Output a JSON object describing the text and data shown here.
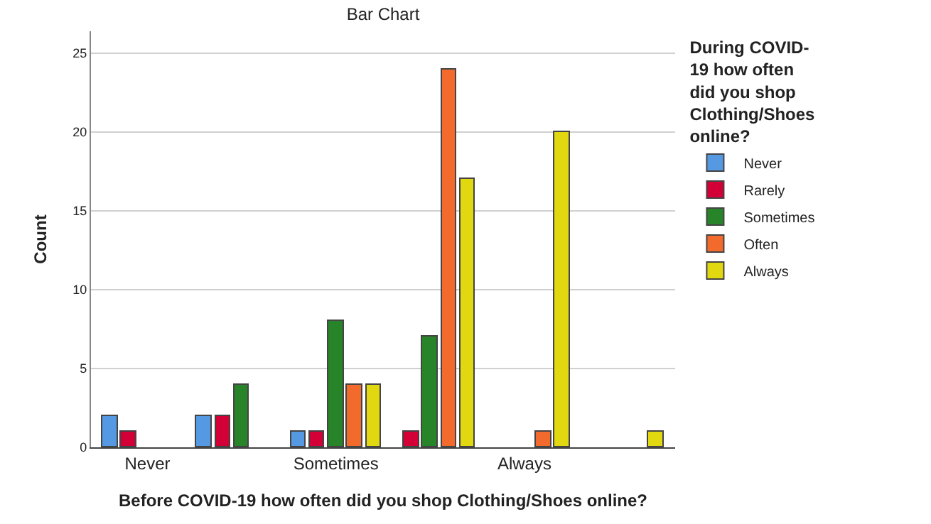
{
  "chart_data": {
    "type": "bar",
    "title": "Bar Chart",
    "xlabel": "Before COVID-19 how often did you shop Clothing/Shoes online?",
    "ylabel": "Count",
    "legend_title": "During COVID-19 how often did you shop Clothing/Shoes online?",
    "categories": [
      "Never",
      null,
      "Sometimes",
      null,
      "Always",
      null
    ],
    "series": [
      {
        "name": "Never",
        "color": "#5599e3",
        "values": [
          2,
          2,
          1,
          null,
          null,
          null
        ]
      },
      {
        "name": "Rarely",
        "color": "#d20036",
        "values": [
          1,
          2,
          1,
          1,
          null,
          null
        ]
      },
      {
        "name": "Sometimes",
        "color": "#288428",
        "values": [
          null,
          4,
          8,
          7,
          null,
          null
        ]
      },
      {
        "name": "Often",
        "color": "#f26a2c",
        "values": [
          null,
          null,
          4,
          24,
          1,
          null
        ]
      },
      {
        "name": "Always",
        "color": "#e2d810",
        "values": [
          null,
          null,
          4,
          17,
          20,
          1
        ]
      }
    ],
    "ylim": [
      0,
      26.4
    ],
    "yticks": [
      0,
      5,
      10,
      15,
      20,
      25
    ],
    "grid": "y",
    "legend": "right"
  }
}
